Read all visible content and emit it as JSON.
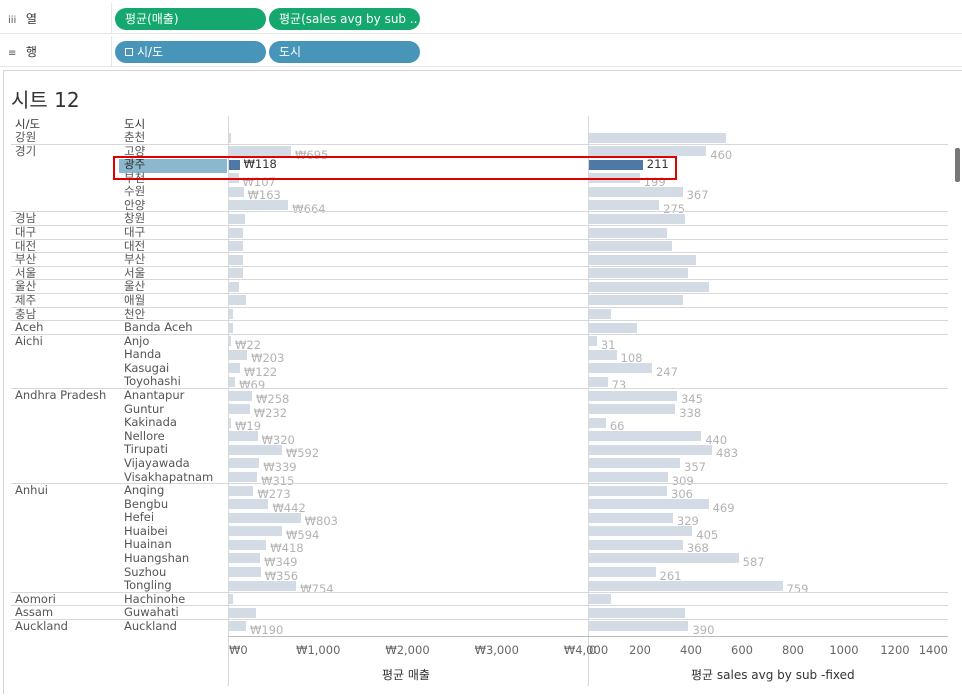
{
  "shelves": {
    "columns": {
      "label": "열",
      "icon": "columns-icon",
      "pills": [
        "평균(매출)",
        "평균(sales avg by sub .."
      ]
    },
    "rows": {
      "label": "행",
      "icon": "rows-icon",
      "pills": [
        "시/도",
        "도시"
      ]
    }
  },
  "sheet": {
    "title": "시트 12"
  },
  "table": {
    "col1_header": "시/도",
    "col2_header": "도시"
  },
  "colors": {
    "highlight_bar": "#4e79a7",
    "dim_bar": "#d3dce4",
    "selected_row": "#8bb8cf",
    "annotation_box": "#e00000"
  },
  "axes": {
    "left": {
      "title": "평균 매출",
      "ticks": [
        "₩0",
        "₩1,000",
        "₩2,000",
        "₩3,000",
        "₩4,000"
      ],
      "max": 4000
    },
    "right": {
      "title": "평균 sales avg by sub -fixed",
      "ticks": [
        "0",
        "200",
        "400",
        "600",
        "800",
        "1000",
        "1200",
        "1400"
      ],
      "max": 1400
    }
  },
  "chart_data": {
    "type": "bar",
    "xlabel_left": "평균 매출",
    "xlabel_right": "평균 sales avg by sub -fixed",
    "rows": [
      {
        "province": "강원",
        "city": "춘천",
        "sales": 10,
        "sales_label": "",
        "sub": 538,
        "sub_label": ""
      },
      {
        "province": "경기",
        "city": "고양",
        "sales": 695,
        "sales_label": "₩695",
        "sub": 460,
        "sub_label": "460"
      },
      {
        "province": "",
        "city": "광주",
        "sales": 118,
        "sales_label": "₩118",
        "sub": 211,
        "sub_label": "211",
        "selected": true
      },
      {
        "province": "",
        "city": "부천",
        "sales": 107,
        "sales_label": "₩107",
        "sub": 199,
        "sub_label": "199"
      },
      {
        "province": "",
        "city": "수원",
        "sales": 163,
        "sales_label": "₩163",
        "sub": 367,
        "sub_label": "367"
      },
      {
        "province": "",
        "city": "안양",
        "sales": 664,
        "sales_label": "₩664",
        "sub": 275,
        "sub_label": "275"
      },
      {
        "province": "경남",
        "city": "창원",
        "sales": 180,
        "sales_label": "",
        "sub": 375,
        "sub_label": ""
      },
      {
        "province": "대구",
        "city": "대구",
        "sales": 160,
        "sales_label": "",
        "sub": 305,
        "sub_label": ""
      },
      {
        "province": "대전",
        "city": "대전",
        "sales": 160,
        "sales_label": "",
        "sub": 325,
        "sub_label": ""
      },
      {
        "province": "부산",
        "city": "부산",
        "sales": 160,
        "sales_label": "",
        "sub": 420,
        "sub_label": ""
      },
      {
        "province": "서울",
        "city": "서울",
        "sales": 160,
        "sales_label": "",
        "sub": 390,
        "sub_label": ""
      },
      {
        "province": "울산",
        "city": "울산",
        "sales": 110,
        "sales_label": "",
        "sub": 470,
        "sub_label": ""
      },
      {
        "province": "제주",
        "city": "애월",
        "sales": 190,
        "sales_label": "",
        "sub": 370,
        "sub_label": ""
      },
      {
        "province": "충남",
        "city": "천안",
        "sales": 40,
        "sales_label": "",
        "sub": 85,
        "sub_label": ""
      },
      {
        "province": "Aceh",
        "city": "Banda Aceh",
        "sales": 50,
        "sales_label": "",
        "sub": 188,
        "sub_label": ""
      },
      {
        "province": "Aichi",
        "city": "Anjo",
        "sales": 22,
        "sales_label": "₩22",
        "sub": 31,
        "sub_label": "31"
      },
      {
        "province": "",
        "city": "Handa",
        "sales": 203,
        "sales_label": "₩203",
        "sub": 108,
        "sub_label": "108"
      },
      {
        "province": "",
        "city": "Kasugai",
        "sales": 122,
        "sales_label": "₩122",
        "sub": 247,
        "sub_label": "247"
      },
      {
        "province": "",
        "city": "Toyohashi",
        "sales": 69,
        "sales_label": "₩69",
        "sub": 73,
        "sub_label": "73"
      },
      {
        "province": "Andhra Pradesh",
        "city": "Anantapur",
        "sales": 258,
        "sales_label": "₩258",
        "sub": 345,
        "sub_label": "345"
      },
      {
        "province": "",
        "city": "Guntur",
        "sales": 232,
        "sales_label": "₩232",
        "sub": 338,
        "sub_label": "338"
      },
      {
        "province": "",
        "city": "Kakinada",
        "sales": 19,
        "sales_label": "₩19",
        "sub": 66,
        "sub_label": "66"
      },
      {
        "province": "",
        "city": "Nellore",
        "sales": 320,
        "sales_label": "₩320",
        "sub": 440,
        "sub_label": "440"
      },
      {
        "province": "",
        "city": "Tirupati",
        "sales": 592,
        "sales_label": "₩592",
        "sub": 483,
        "sub_label": "483"
      },
      {
        "province": "",
        "city": "Vijayawada",
        "sales": 339,
        "sales_label": "₩339",
        "sub": 357,
        "sub_label": "357"
      },
      {
        "province": "",
        "city": "Visakhapatnam",
        "sales": 315,
        "sales_label": "₩315",
        "sub": 309,
        "sub_label": "309"
      },
      {
        "province": "Anhui",
        "city": "Anqing",
        "sales": 273,
        "sales_label": "₩273",
        "sub": 306,
        "sub_label": "306"
      },
      {
        "province": "",
        "city": "Bengbu",
        "sales": 442,
        "sales_label": "₩442",
        "sub": 469,
        "sub_label": "469"
      },
      {
        "province": "",
        "city": "Hefei",
        "sales": 803,
        "sales_label": "₩803",
        "sub": 329,
        "sub_label": "329"
      },
      {
        "province": "",
        "city": "Huaibei",
        "sales": 594,
        "sales_label": "₩594",
        "sub": 405,
        "sub_label": "405"
      },
      {
        "province": "",
        "city": "Huainan",
        "sales": 418,
        "sales_label": "₩418",
        "sub": 368,
        "sub_label": "368"
      },
      {
        "province": "",
        "city": "Huangshan",
        "sales": 349,
        "sales_label": "₩349",
        "sub": 587,
        "sub_label": "587"
      },
      {
        "province": "",
        "city": "Suzhou",
        "sales": 356,
        "sales_label": "₩356",
        "sub": 261,
        "sub_label": "261"
      },
      {
        "province": "",
        "city": "Tongling",
        "sales": 754,
        "sales_label": "₩754",
        "sub": 759,
        "sub_label": "759"
      },
      {
        "province": "Aomori",
        "city": "Hachinohe",
        "sales": 50,
        "sales_label": "",
        "sub": 85,
        "sub_label": ""
      },
      {
        "province": "Assam",
        "city": "Guwahati",
        "sales": 300,
        "sales_label": "",
        "sub": 378,
        "sub_label": ""
      },
      {
        "province": "Auckland",
        "city": "Auckland",
        "sales": 190,
        "sales_label": "₩190",
        "sub": 390,
        "sub_label": "390"
      }
    ]
  }
}
